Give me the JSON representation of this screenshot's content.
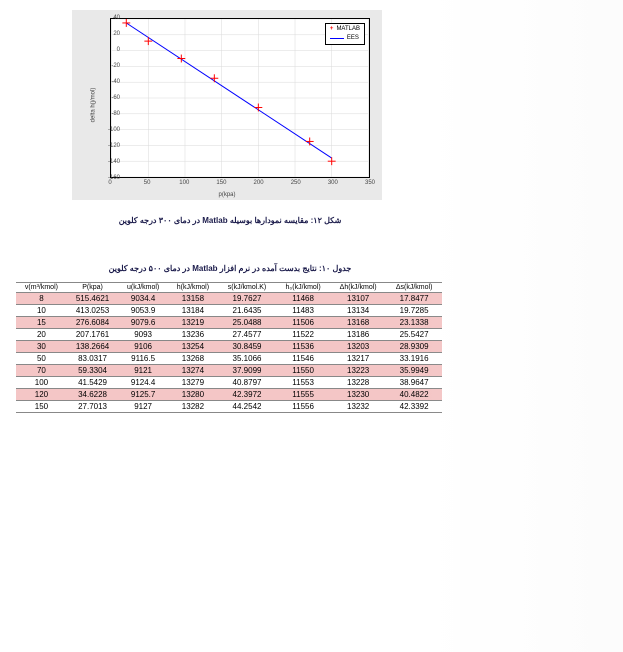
{
  "chart": {
    "type": "scatter+line",
    "background_color": "#e9e9e9",
    "plot_background": "#ffffff",
    "xlabel": "p(kpa)",
    "ylabel": "delta h(j/mol)",
    "xlim": [
      0,
      350
    ],
    "ylim": [
      -160,
      40
    ],
    "xticks": [
      0,
      50,
      100,
      150,
      200,
      250,
      300,
      350
    ],
    "yticks": [
      -160,
      -140,
      -120,
      -100,
      -80,
      -60,
      -40,
      -20,
      0,
      20,
      40
    ],
    "grid_color": "#d9d9d9",
    "axis_color": "#000000",
    "tick_fontsize": 6,
    "label_fontsize": 6,
    "legend": {
      "items": [
        {
          "label": "MATLAB",
          "marker": "+",
          "color": "#ff0000"
        },
        {
          "label": "EES",
          "line_color": "#0000ff"
        }
      ],
      "position": "top-right",
      "fontsize": 6
    },
    "series_points": {
      "color": "#ff0000",
      "marker": "+",
      "marker_size": 4,
      "data": [
        {
          "x": 20,
          "y": 35
        },
        {
          "x": 50,
          "y": 12
        },
        {
          "x": 95,
          "y": -10
        },
        {
          "x": 140,
          "y": -35
        },
        {
          "x": 200,
          "y": -72
        },
        {
          "x": 270,
          "y": -115
        },
        {
          "x": 300,
          "y": -140
        }
      ]
    },
    "series_line": {
      "color": "#0000ff",
      "width": 1,
      "data": [
        {
          "x": 20,
          "y": 35
        },
        {
          "x": 300,
          "y": -136
        }
      ]
    }
  },
  "captions": {
    "fig": "شکل ۱۲: مقایسه نمودارها بوسیله Matlab در دمای ۳۰۰ درجه کلوین",
    "table": "جدول ۱۰: نتایج بدست آمده در نرم افزار Matlab در دمای ۵۰۰ درجه کلوین"
  },
  "table": {
    "header_bg": "#ffffff",
    "row_odd_bg": "#f4c6c6",
    "row_even_bg": "#ffffff",
    "border_color": "#888888",
    "fontsize": 8,
    "columns": [
      "v(m³/kmol)",
      "P(kpa)",
      "u(kJ/kmol)",
      "h(kJ/kmol)",
      "s(kJ/kmol.K)",
      "h₀(kJ/kmol)",
      "Δh(kJ/kmol)",
      "Δs(kJ/kmol)"
    ],
    "rows": [
      [
        "8",
        "515.4621",
        "9034.4",
        "13158",
        "19.7627",
        "11468",
        "13107",
        "17.8477"
      ],
      [
        "10",
        "413.0253",
        "9053.9",
        "13184",
        "21.6435",
        "11483",
        "13134",
        "19.7285"
      ],
      [
        "15",
        "276.6084",
        "9079.6",
        "13219",
        "25.0488",
        "11506",
        "13168",
        "23.1338"
      ],
      [
        "20",
        "207.1761",
        "9093",
        "13236",
        "27.4577",
        "11522",
        "13186",
        "25.5427"
      ],
      [
        "30",
        "138.2664",
        "9106",
        "13254",
        "30.8459",
        "11536",
        "13203",
        "28.9309"
      ],
      [
        "50",
        "83.0317",
        "9116.5",
        "13268",
        "35.1066",
        "11546",
        "13217",
        "33.1916"
      ],
      [
        "70",
        "59.3304",
        "9121",
        "13274",
        "37.9099",
        "11550",
        "13223",
        "35.9949"
      ],
      [
        "100",
        "41.5429",
        "9124.4",
        "13279",
        "40.8797",
        "11553",
        "13228",
        "38.9647"
      ],
      [
        "120",
        "34.6228",
        "9125.7",
        "13280",
        "42.3972",
        "11555",
        "13230",
        "40.4822"
      ],
      [
        "150",
        "27.7013",
        "9127",
        "13282",
        "44.2542",
        "11556",
        "13232",
        "42.3392"
      ]
    ]
  }
}
